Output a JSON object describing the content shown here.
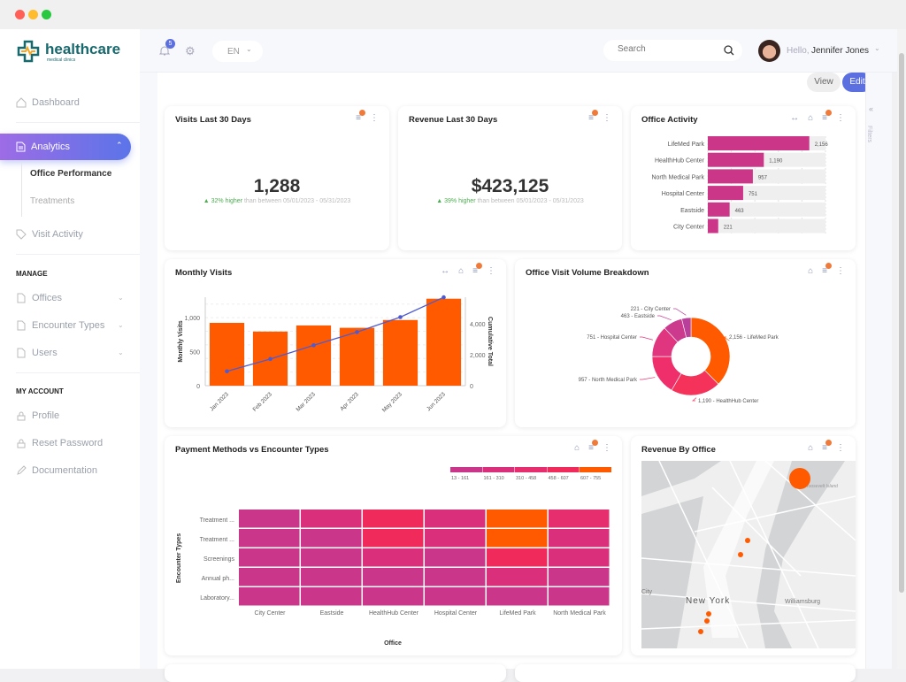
{
  "window": {
    "dots": [
      "#ff5f57",
      "#febc2e",
      "#28c840"
    ]
  },
  "brand": {
    "name": "healthcare",
    "tagline": "medical clinics",
    "color": "#17696e",
    "accent": "#f5a623"
  },
  "header": {
    "notifications": "5",
    "language": "EN",
    "search_placeholder": "Search",
    "greeting": "Hello,",
    "user": "Jennifer Jones"
  },
  "toolbar": {
    "view": "View",
    "edit": "Edit"
  },
  "filters_label": "Filters",
  "sidebar": {
    "dashboard": "Dashboard",
    "analytics": "Analytics",
    "office_performance": "Office Performance",
    "treatments": "Treatments",
    "visit_activity": "Visit Activity",
    "manage": "MANAGE",
    "offices": "Offices",
    "encounter_types": "Encounter Types",
    "users": "Users",
    "my_account": "MY ACCOUNT",
    "profile": "Profile",
    "reset_password": "Reset Password",
    "documentation": "Documentation"
  },
  "kpis": [
    {
      "title": "Visits Last 30 Days",
      "value": "1,288",
      "change": "▲ 32% higher",
      "compare": "than between 05/01/2023 - 05/31/2023"
    },
    {
      "title": "Revenue Last 30 Days",
      "value": "$423,125",
      "change": "▲ 39% higher",
      "compare": "than between 05/01/2023 - 05/31/2023"
    }
  ],
  "chart_data": [
    {
      "id": "office-activity",
      "type": "bar",
      "orientation": "horizontal",
      "title": "Office Activity",
      "categories": [
        "LifeMed Park",
        "HealthHub Center",
        "North Medical Park",
        "Hospital Center",
        "Eastside",
        "City Center"
      ],
      "values": [
        2156,
        1190,
        957,
        751,
        463,
        221
      ],
      "labels": [
        "2,156",
        "1,190",
        "957",
        "751",
        "463",
        "221"
      ],
      "xlim": [
        0,
        2500
      ],
      "color": "#cc3688"
    },
    {
      "id": "monthly-visits",
      "type": "bar",
      "title": "Monthly Visits",
      "categories": [
        "Jan 2023",
        "Feb 2023",
        "Mar 2023",
        "Apr 2023",
        "May 2023",
        "Jun 2023"
      ],
      "series": [
        {
          "type": "bar",
          "values": [
            923,
            795,
            885,
            850,
            965,
            1278
          ],
          "color": "#ff5a00"
        },
        {
          "type": "line",
          "axis": "right",
          "values": [
            923,
            1718,
            2603,
            3453,
            4418,
            5696
          ],
          "color": "#4e5bd0"
        }
      ],
      "ylabel": "Monthly Visits",
      "y2label": "Cumulative Total",
      "ylim": [
        0,
        1300
      ],
      "y2lim": [
        0,
        5700
      ],
      "yticks": [
        "0",
        "500",
        "1,000"
      ],
      "y2ticks": [
        "0",
        "2,000",
        "4,000"
      ]
    },
    {
      "id": "visit-volume",
      "type": "pie",
      "donut": true,
      "title": "Office Visit Volume Breakdown",
      "categories": [
        "LifeMed Park",
        "HealthHub Center",
        "North Medical Park",
        "Hospital Center",
        "Eastside",
        "City Center"
      ],
      "values": [
        2156,
        1190,
        957,
        751,
        463,
        221
      ],
      "labels": [
        "2,156 - LifeMed Park",
        "1,190 - HealthHub Center",
        "957 - North Medical Park",
        "751 - Hospital Center",
        "463 - Eastside",
        "221 - City Center"
      ],
      "colors": [
        "#ff5a00",
        "#f4325a",
        "#ee2f6c",
        "#e0357f",
        "#cc3a8e",
        "#b8409a"
      ]
    },
    {
      "id": "payment-heatmap",
      "type": "heatmap",
      "title": "Payment Methods vs Encounter Types",
      "xlabel": "Office",
      "ylabel": "Encounter Types",
      "x": [
        "City Center",
        "Eastside",
        "HealthHub Center",
        "Hospital Center",
        "LifeMed Park",
        "North Medical Park"
      ],
      "y": [
        "Treatment ...",
        "Treatment ...",
        "Screenings",
        "Annual ph...",
        "Laboratory..."
      ],
      "values": [
        [
          120,
          240,
          520,
          250,
          720,
          450
        ],
        [
          100,
          140,
          500,
          220,
          700,
          230
        ],
        [
          90,
          110,
          260,
          100,
          560,
          240
        ],
        [
          60,
          80,
          110,
          90,
          230,
          120
        ],
        [
          20,
          30,
          60,
          40,
          100,
          50
        ]
      ],
      "bins": [
        "13 - 161",
        "161 - 310",
        "310 - 458",
        "458 - 607",
        "607 - 755"
      ],
      "bin_edges": [
        13,
        161,
        310,
        458,
        607,
        755
      ],
      "colors": [
        "#c9368a",
        "#da2f7a",
        "#e62d6d",
        "#f02b5b",
        "#ff5a00"
      ]
    },
    {
      "id": "revenue-map",
      "type": "map",
      "title": "Revenue By Office",
      "place_labels": [
        "New York",
        "Williamsburg",
        "City",
        "Roosevelt Island"
      ],
      "marker_color": "#ff5a00"
    }
  ]
}
